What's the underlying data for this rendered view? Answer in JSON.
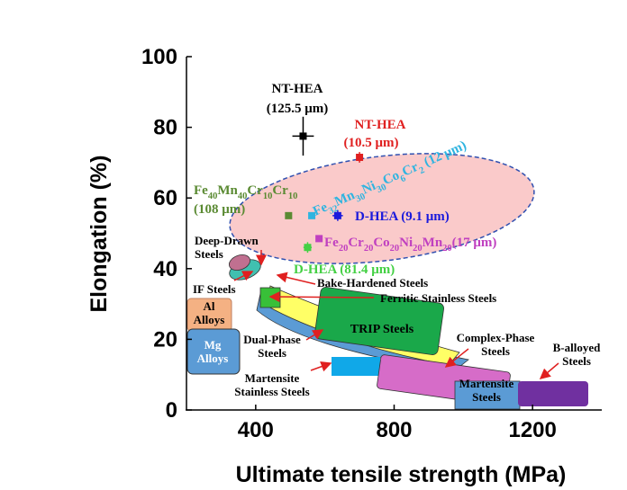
{
  "chart_data": {
    "type": "scatter",
    "x_label": "Ultimate tensile strength (MPa)",
    "y_label": "Elongation (%)",
    "xlim": [
      200,
      1400
    ],
    "ylim": [
      0,
      100
    ],
    "xticks": [
      400,
      800,
      1200
    ],
    "yticks": [
      0,
      20,
      40,
      60,
      80,
      100
    ],
    "series": [
      {
        "label": [
          "NT-HEA",
          "(125.5 μm)"
        ],
        "color": "#000000",
        "x": [
          537
        ],
        "y": [
          77.5
        ],
        "xerr": [
          31
        ],
        "yerr": [
          5.5
        ]
      },
      {
        "label": [
          "NT-HEA",
          "(10.5 μm)"
        ],
        "color": "#e02020",
        "x": [
          700
        ],
        "y": [
          71.5
        ],
        "xerr": [
          8
        ],
        "yerr": [
          1.5
        ]
      },
      {
        "label": [
          "Fe40Mn40Cr10Cr10",
          "(108 μm)"
        ],
        "color": "#5a8a32",
        "x": [
          495
        ],
        "y": [
          55
        ]
      },
      {
        "label": [
          "Fe32Mn30Ni30Co6Cr2 (12 μm)"
        ],
        "color": "#2fb4e0",
        "x": [
          562
        ],
        "y": [
          55
        ]
      },
      {
        "label": [
          "D-HEA (9.1 μm)"
        ],
        "color": "#1a1adc",
        "x": [
          637
        ],
        "y": [
          55
        ],
        "xerr": [
          15
        ],
        "yerr": [
          1.5
        ]
      },
      {
        "label": [
          "Fe20Cr20Co20Ni20Mn20(17 μm)"
        ],
        "color": "#c040c0",
        "x": [
          583
        ],
        "y": [
          48.5
        ]
      },
      {
        "label": [
          "D-HEA (81.4 μm)"
        ],
        "color": "#44d044",
        "x": [
          550
        ],
        "y": [
          46
        ],
        "xerr": [
          12
        ],
        "yerr": [
          1.5
        ]
      }
    ],
    "regions": [
      "Deep-Drawn Steels",
      "IF Steels",
      "Bake-Hardened Steels",
      "Ferritic  Stainless Steels",
      "Al Alloys",
      "Mg Alloys",
      "Dual-Phase Steels",
      "Martensite Stainless Steels",
      "TRIP Steels",
      "Complex-Phase Steels",
      "Martensite Steels",
      "B-alloyed Steels"
    ]
  }
}
